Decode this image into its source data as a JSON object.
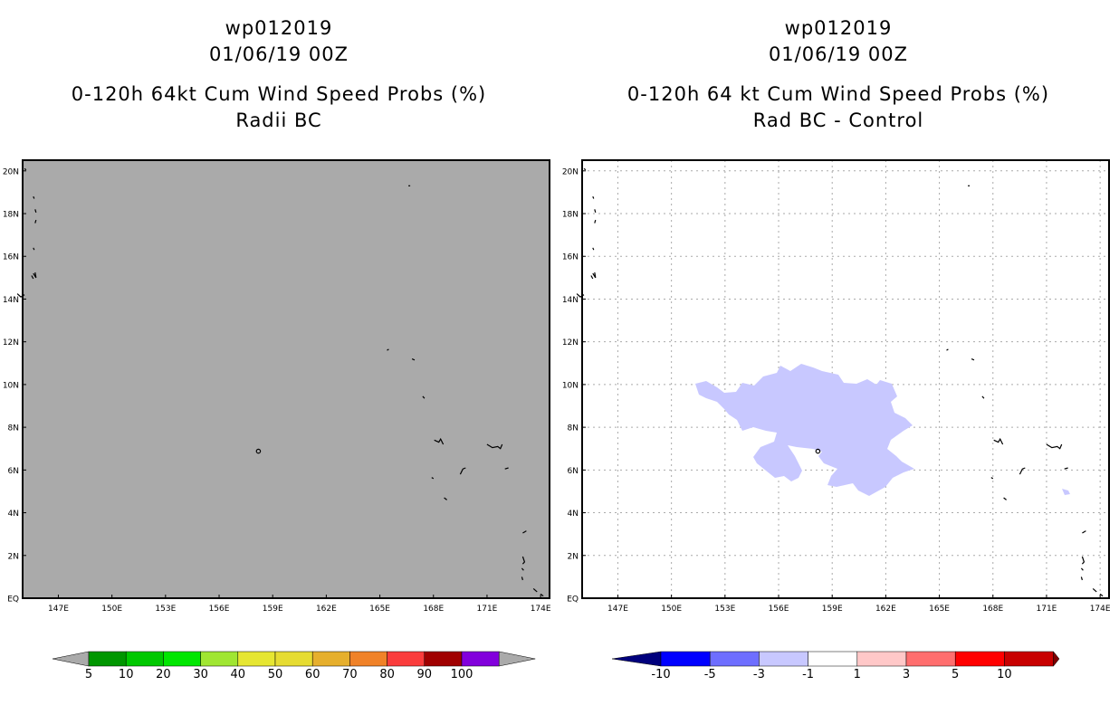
{
  "left_panel": {
    "title_line1": "wp012019",
    "title_line2": "01/06/19 00Z",
    "title_line3": "0-120h 64kt Cum Wind Speed Probs (%)",
    "title_line4": "Radii BC",
    "background": "#aaaaaa"
  },
  "right_panel": {
    "title_line1": "wp012019",
    "title_line2": "01/06/19 00Z",
    "title_line3": "0-120h 64 kt Cum Wind Speed Probs (%)",
    "title_line4": "Rad BC - Control",
    "background": "#ffffff",
    "anomaly_fill_color": "#c8c8ff",
    "anomaly_category": "-3 to -1"
  },
  "map": {
    "lat_ticks": [
      "20N",
      "18N",
      "16N",
      "14N",
      "12N",
      "10N",
      "8N",
      "6N",
      "4N",
      "2N",
      "EQ"
    ],
    "lon_ticks": [
      "147E",
      "150E",
      "153E",
      "156E",
      "159E",
      "162E",
      "165E",
      "168E",
      "171E",
      "174E"
    ],
    "lat_range": [
      0,
      20.5
    ],
    "lon_range": [
      145,
      174.5
    ],
    "gridlines_right_panel": true
  },
  "left_colorbar": {
    "labels": [
      "5",
      "10",
      "20",
      "30",
      "40",
      "50",
      "60",
      "70",
      "80",
      "90",
      "100"
    ],
    "colors": [
      "#009600",
      "#00c800",
      "#00e600",
      "#a0e632",
      "#e6e632",
      "#e6dc32",
      "#e6af2d",
      "#f08228",
      "#fa3c3c",
      "#a00000",
      "#8200dc"
    ],
    "end_color": "#aaaaaa"
  },
  "right_colorbar": {
    "labels": [
      "-10",
      "-5",
      "-3",
      "-1",
      "1",
      "3",
      "5",
      "10"
    ],
    "colors": [
      "#0000c8",
      "#0000ff",
      "#6e6eff",
      "#c8c8ff",
      "#ffffff",
      "#ffc8c8",
      "#ff6e6e",
      "#ff0000",
      "#c80000",
      "#640000"
    ],
    "low_end_color": "#00007d",
    "high_end_color": "#7d0000"
  }
}
